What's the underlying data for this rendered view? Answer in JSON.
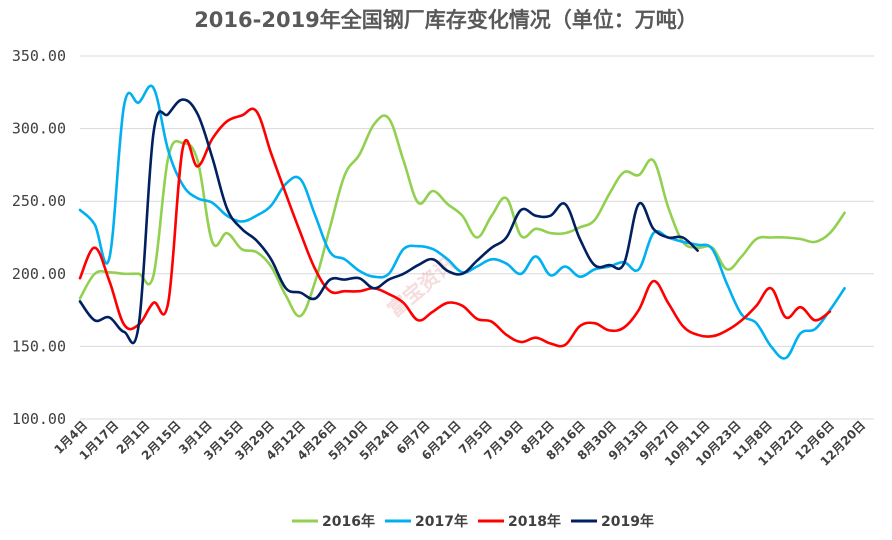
{
  "chart_data": {
    "type": "line",
    "title": "2016-2019年全国钢厂库存变化情况（单位：万吨）",
    "ylim": [
      100,
      350
    ],
    "yticks": [
      "100.00",
      "150.00",
      "200.00",
      "250.00",
      "300.00",
      "350.00"
    ],
    "ytick_values": [
      100,
      150,
      200,
      250,
      300,
      350
    ],
    "grid": true,
    "legend_position": "bottom",
    "categories": [
      "1月4日",
      "1月17日",
      "2月1日",
      "2月15日",
      "3月1日",
      "3月15日",
      "3月29日",
      "4月12日",
      "4月26日",
      "5月10日",
      "5月24日",
      "6月7日",
      "6月21日",
      "7月5日",
      "7月19日",
      "8月2日",
      "8月16日",
      "8月30日",
      "9月13日",
      "9月27日",
      "10月11日",
      "10月23日",
      "11月8日",
      "11月22日",
      "12月6日",
      "12月20日"
    ],
    "x_max": 54,
    "watermark": "富宝资讯",
    "series": [
      {
        "name": "2016年",
        "color": "#92d050",
        "x": [
          0,
          1,
          2,
          3,
          4,
          5,
          6,
          7,
          8,
          9,
          10,
          11,
          12,
          13,
          14,
          15,
          16,
          17,
          18,
          19,
          20,
          21,
          22,
          23,
          24,
          25,
          26,
          27,
          28,
          29,
          30,
          31,
          32,
          33,
          34,
          35,
          36,
          37,
          38,
          39,
          40,
          41,
          42,
          43,
          44,
          45,
          46,
          47,
          48,
          49,
          50,
          51,
          52,
          53
        ],
        "values": [
          183,
          200,
          201,
          200,
          200,
          199,
          280,
          290,
          278,
          222,
          228,
          217,
          215,
          205,
          185,
          171,
          195,
          232,
          268,
          282,
          303,
          307,
          278,
          249,
          257,
          248,
          240,
          225,
          240,
          252,
          226,
          231,
          228,
          228,
          232,
          237,
          255,
          270,
          268,
          278,
          246,
          222,
          218,
          218,
          203,
          212,
          224,
          225,
          225,
          224,
          222,
          228,
          242,
          null
        ]
      },
      {
        "name": "2017年",
        "color": "#00b0f0",
        "x": [
          0,
          1,
          2,
          3,
          4,
          5,
          6,
          7,
          8,
          9,
          10,
          11,
          12,
          13,
          14,
          15,
          16,
          17,
          18,
          19,
          20,
          21,
          22,
          23,
          24,
          25,
          26,
          27,
          28,
          29,
          30,
          31,
          32,
          33,
          34,
          35,
          36,
          37,
          38,
          39,
          40,
          41,
          42,
          43,
          44,
          45,
          46,
          47,
          48,
          49,
          50,
          51,
          52,
          53
        ],
        "values": [
          244,
          234,
          211,
          316,
          318,
          328,
          285,
          261,
          252,
          249,
          240,
          236,
          240,
          247,
          262,
          265,
          240,
          215,
          210,
          202,
          198,
          200,
          217,
          219,
          217,
          210,
          201,
          205,
          210,
          207,
          200,
          212,
          199,
          205,
          198,
          203,
          205,
          208,
          203,
          228,
          225,
          222,
          220,
          217,
          193,
          172,
          166,
          150,
          142,
          159,
          162,
          175,
          190,
          null
        ]
      },
      {
        "name": "2018年",
        "color": "#ff0000",
        "x": [
          0,
          1,
          2,
          3,
          4,
          5,
          6,
          7,
          8,
          9,
          10,
          11,
          12,
          13,
          14,
          15,
          16,
          17,
          18,
          19,
          20,
          21,
          22,
          23,
          24,
          25,
          26,
          27,
          28,
          29,
          30,
          31,
          32,
          33,
          34,
          35,
          36,
          37,
          38,
          39,
          40,
          41,
          42,
          43,
          44,
          45,
          46,
          47,
          48,
          49,
          50,
          51,
          52,
          53
        ],
        "values": [
          197,
          218,
          195,
          165,
          165,
          180,
          180,
          287,
          274,
          293,
          305,
          309,
          312,
          283,
          255,
          228,
          203,
          188,
          188,
          188,
          190,
          186,
          180,
          168,
          174,
          180,
          178,
          169,
          167,
          158,
          153,
          156,
          152,
          151,
          164,
          166,
          161,
          163,
          175,
          195,
          180,
          164,
          158,
          157,
          161,
          168,
          178,
          190,
          170,
          177,
          168,
          174,
          null,
          null
        ]
      },
      {
        "name": "2019年",
        "color": "#002060",
        "x": [
          0,
          1,
          2,
          3,
          4,
          5,
          6,
          7,
          8,
          9,
          10,
          11,
          12,
          13,
          14,
          15,
          16,
          17,
          18,
          19,
          20,
          21,
          22,
          23,
          24,
          25,
          26,
          27,
          28,
          29,
          30,
          31,
          32,
          33,
          34,
          35,
          36,
          37,
          38,
          39,
          40,
          41,
          42,
          43,
          44,
          45,
          46,
          47,
          48,
          49,
          50,
          51,
          52,
          53
        ],
        "values": [
          181,
          168,
          170,
          160,
          165,
          297,
          310,
          320,
          310,
          280,
          245,
          231,
          223,
          210,
          190,
          187,
          183,
          196,
          196,
          197,
          190,
          196,
          200,
          206,
          210,
          202,
          200,
          209,
          218,
          225,
          244,
          240,
          240,
          248,
          224,
          206,
          206,
          207,
          248,
          231,
          225,
          225,
          216,
          null,
          null,
          null,
          null,
          null,
          null,
          null,
          null,
          null,
          null,
          null
        ]
      }
    ]
  }
}
